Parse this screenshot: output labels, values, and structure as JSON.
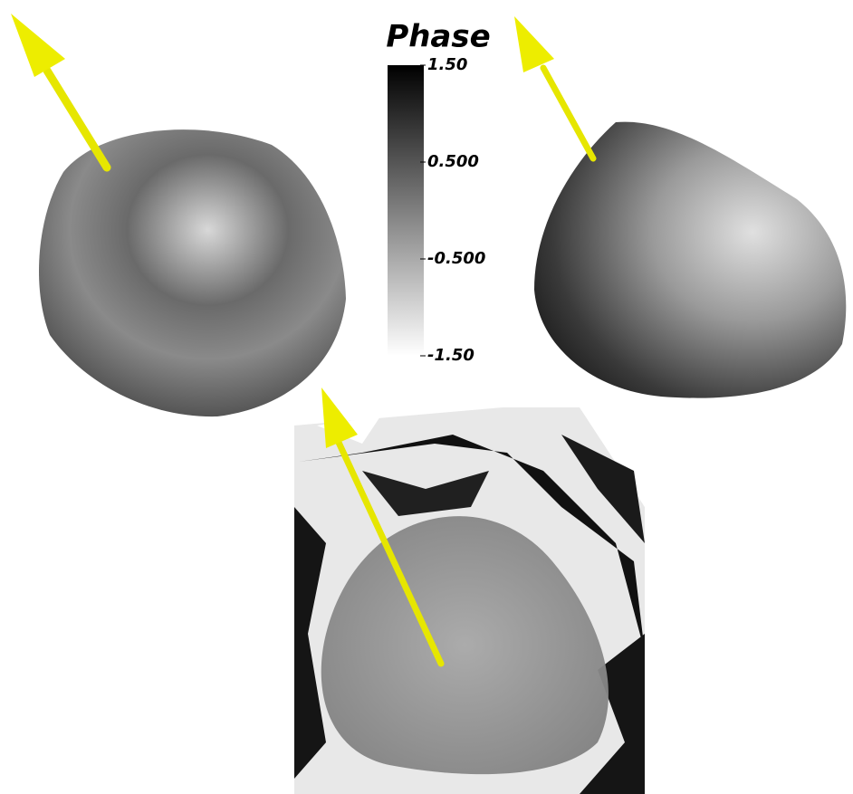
{
  "colorbar": {
    "title": "Phase",
    "range": [
      -1.5,
      1.5
    ],
    "ticks": [
      {
        "value": 1.5,
        "label": "1.50"
      },
      {
        "value": 0.5,
        "label": "0.500"
      },
      {
        "value": -0.5,
        "label": "-0.500"
      },
      {
        "value": -1.5,
        "label": "-1.50"
      }
    ]
  }
}
